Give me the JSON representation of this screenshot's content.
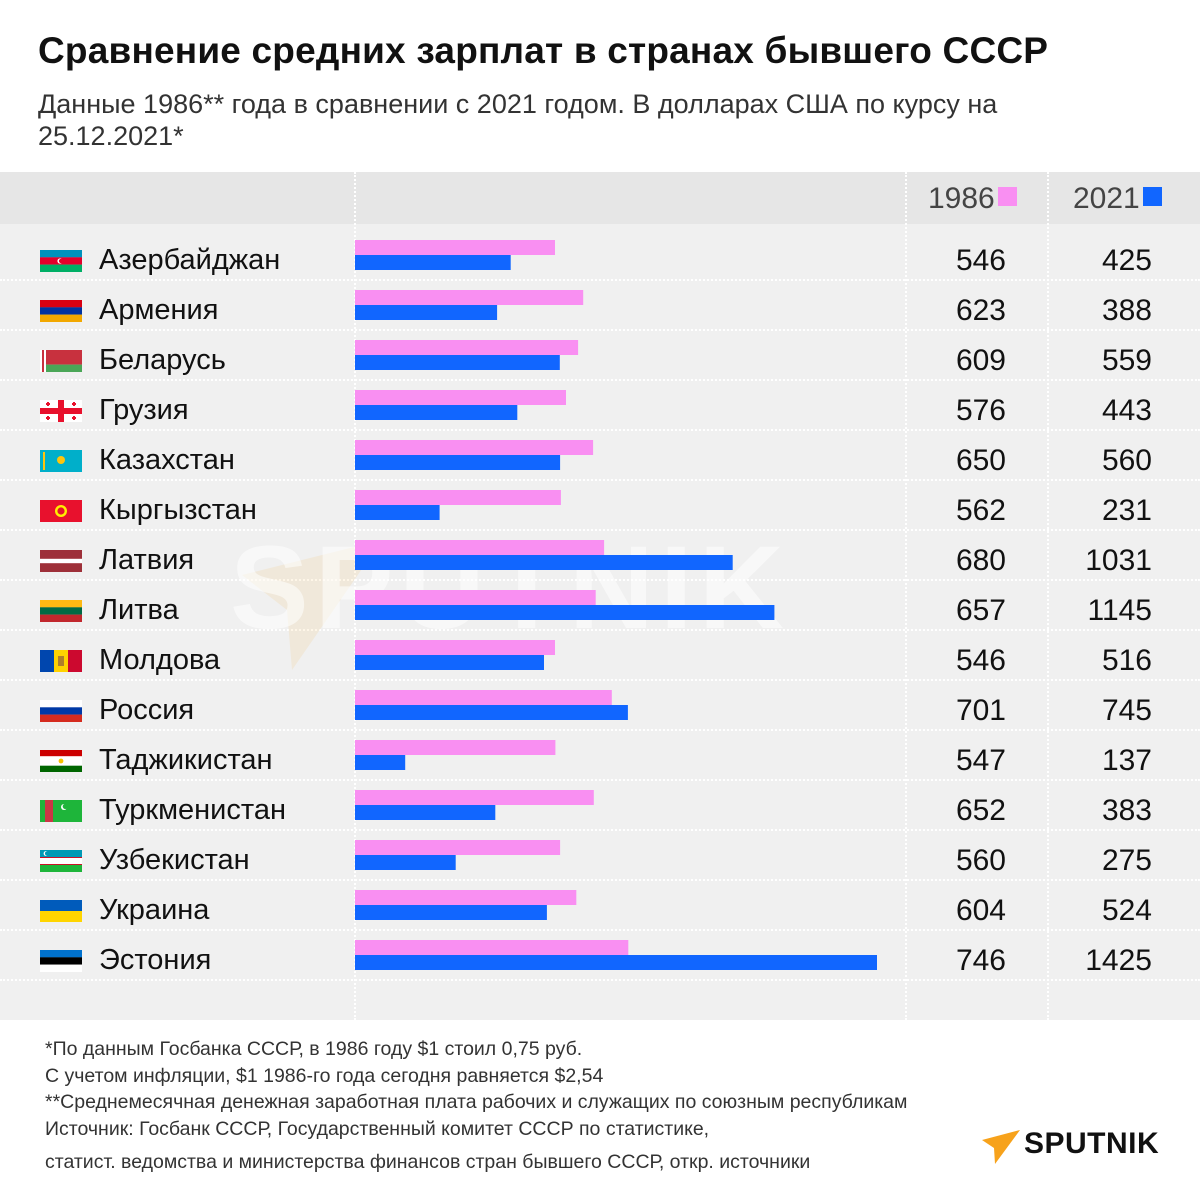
{
  "title": "Сравнение средних зарплат в странах бывшего СССР",
  "subtitle": "Данные 1986** года в сравнении с 2021 годом. В долларах США по курсу на 25.12.2021*",
  "colors": {
    "y1986": "#f98ff2",
    "y2021": "#1166ff",
    "panel": "#f0f0f0",
    "accent": "#f7a21b"
  },
  "chart_data": {
    "type": "bar",
    "orientation": "horizontal",
    "categories": [
      "Азербайджан",
      "Армения",
      "Беларусь",
      "Грузия",
      "Казахстан",
      "Кыргызстан",
      "Латвия",
      "Литва",
      "Молдова",
      "Россия",
      "Таджикистан",
      "Туркменистан",
      "Узбекистан",
      "Украина",
      "Эстония"
    ],
    "series": [
      {
        "name": "1986",
        "values": [
          546,
          623,
          609,
          576,
          650,
          562,
          680,
          657,
          546,
          701,
          547,
          652,
          560,
          604,
          746
        ]
      },
      {
        "name": "2021",
        "values": [
          425,
          388,
          559,
          443,
          560,
          231,
          1031,
          1145,
          516,
          745,
          137,
          383,
          275,
          524,
          1425
        ]
      }
    ],
    "xlim": [
      0,
      1425
    ]
  },
  "rows": [
    {
      "country": "Азербайджан",
      "flag": "azerbaijan-flag-icon",
      "v1986": "546",
      "v2021": "425"
    },
    {
      "country": "Армения",
      "flag": "armenia-flag-icon",
      "v1986": "623",
      "v2021": "388"
    },
    {
      "country": "Беларусь",
      "flag": "belarus-flag-icon",
      "v1986": "609",
      "v2021": "559"
    },
    {
      "country": "Грузия",
      "flag": "georgia-flag-icon",
      "v1986": "576",
      "v2021": "443"
    },
    {
      "country": "Казахстан",
      "flag": "kazakhstan-flag-icon",
      "v1986": "650",
      "v2021": "560"
    },
    {
      "country": "Кыргызстан",
      "flag": "kyrgyzstan-flag-icon",
      "v1986": "562",
      "v2021": "231"
    },
    {
      "country": "Латвия",
      "flag": "latvia-flag-icon",
      "v1986": "680",
      "v2021": "1031"
    },
    {
      "country": "Литва",
      "flag": "lithuania-flag-icon",
      "v1986": "657",
      "v2021": "1145"
    },
    {
      "country": "Молдова",
      "flag": "moldova-flag-icon",
      "v1986": "546",
      "v2021": "516"
    },
    {
      "country": "Россия",
      "flag": "russia-flag-icon",
      "v1986": "701",
      "v2021": "745"
    },
    {
      "country": "Таджикистан",
      "flag": "tajikistan-flag-icon",
      "v1986": "547",
      "v2021": "137"
    },
    {
      "country": "Туркменистан",
      "flag": "turkmenistan-flag-icon",
      "v1986": "652",
      "v2021": "383"
    },
    {
      "country": "Узбекистан",
      "flag": "uzbekistan-flag-icon",
      "v1986": "560",
      "v2021": "275"
    },
    {
      "country": "Украина",
      "flag": "ukraine-flag-icon",
      "v1986": "604",
      "v2021": "524"
    },
    {
      "country": "Эстония",
      "flag": "estonia-flag-icon",
      "v1986": "746",
      "v2021": "1425"
    }
  ],
  "notes": [
    "*По данным Госбанка СССР, в 1986 году $1 стоил 0,75 руб.",
    "С учетом инфляции, $1 1986-го года сегодня равняется $2,54",
    "**Среднемесячная денежная заработная плата рабочих и служащих по союзным республикам",
    "Источник: Госбанк СССР, Государственный комитет СССР по статистике,",
    "статист. ведомства и министерства финансов стран бывшего СССР, откр. источники"
  ],
  "brand": {
    "name": "SPUTNIK",
    "watermark": "SPUTNIK",
    "icon": "sputnik-logo-icon"
  }
}
